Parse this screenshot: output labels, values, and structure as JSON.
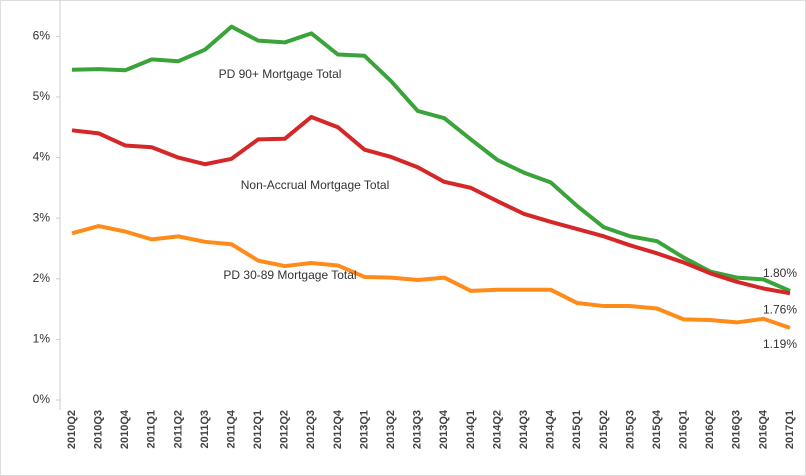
{
  "chart_data": {
    "type": "line",
    "categories": [
      "2010Q2",
      "2010Q3",
      "2010Q4",
      "2011Q1",
      "2011Q2",
      "2011Q3",
      "2011Q4",
      "2012Q1",
      "2012Q2",
      "2012Q3",
      "2012Q4",
      "2013Q1",
      "2013Q2",
      "2013Q3",
      "2013Q4",
      "2014Q1",
      "2014Q2",
      "2014Q3",
      "2014Q4",
      "2015Q1",
      "2015Q2",
      "2015Q3",
      "2015Q4",
      "2016Q1",
      "2016Q2",
      "2016Q3",
      "2016Q4",
      "2017Q1"
    ],
    "series": [
      {
        "name": "PD 90+ Mortgage Total",
        "color": "#3aa33a",
        "values": [
          5.45,
          5.46,
          5.44,
          5.62,
          5.59,
          5.78,
          6.16,
          5.93,
          5.9,
          6.05,
          5.7,
          5.68,
          5.26,
          4.77,
          4.65,
          4.3,
          3.96,
          3.75,
          3.59,
          3.2,
          2.85,
          2.7,
          2.62,
          2.35,
          2.12,
          2.02,
          1.99,
          1.8
        ],
        "value_labels": [
          null,
          null,
          null,
          null,
          null,
          null,
          null,
          null,
          null,
          null,
          null,
          null,
          null,
          null,
          null,
          null,
          null,
          null,
          null,
          null,
          null,
          null,
          null,
          null,
          null,
          null,
          null,
          "1.80%"
        ]
      },
      {
        "name": "Non-Accrual Mortgage Total",
        "color": "#d62728",
        "values": [
          4.45,
          4.4,
          4.2,
          4.17,
          4.0,
          3.89,
          3.98,
          4.3,
          4.31,
          4.67,
          4.5,
          4.13,
          4.01,
          3.84,
          3.6,
          3.5,
          3.28,
          3.07,
          2.94,
          2.82,
          2.7,
          2.55,
          2.42,
          2.27,
          2.09,
          1.95,
          1.84,
          1.76
        ],
        "value_labels": [
          null,
          null,
          null,
          null,
          null,
          null,
          null,
          null,
          null,
          null,
          null,
          null,
          null,
          null,
          null,
          null,
          null,
          null,
          null,
          null,
          null,
          null,
          null,
          null,
          null,
          null,
          null,
          "1.76%"
        ]
      },
      {
        "name": "PD 30-89 Mortgage Total",
        "color": "#ff8c1a",
        "values": [
          2.75,
          2.87,
          2.78,
          2.65,
          2.7,
          2.61,
          2.57,
          2.3,
          2.21,
          2.26,
          2.22,
          2.03,
          2.02,
          1.98,
          2.02,
          1.8,
          1.82,
          1.82,
          1.82,
          1.6,
          1.55,
          1.55,
          1.51,
          1.33,
          1.32,
          1.28,
          1.34,
          1.19
        ],
        "value_labels": [
          null,
          null,
          null,
          null,
          null,
          null,
          null,
          null,
          null,
          null,
          null,
          null,
          null,
          null,
          null,
          null,
          null,
          null,
          null,
          null,
          null,
          null,
          null,
          null,
          null,
          null,
          null,
          "1.19%"
        ]
      }
    ],
    "ylim": [
      0,
      6.6
    ],
    "yticks": [
      {
        "value": 0,
        "label": "0%"
      },
      {
        "value": 1,
        "label": "1%"
      },
      {
        "value": 2,
        "label": "2%"
      },
      {
        "value": 3,
        "label": "3%"
      },
      {
        "value": 4,
        "label": "4%"
      },
      {
        "value": 5,
        "label": "5%"
      },
      {
        "value": 6,
        "label": "6%"
      }
    ],
    "grid": false
  }
}
